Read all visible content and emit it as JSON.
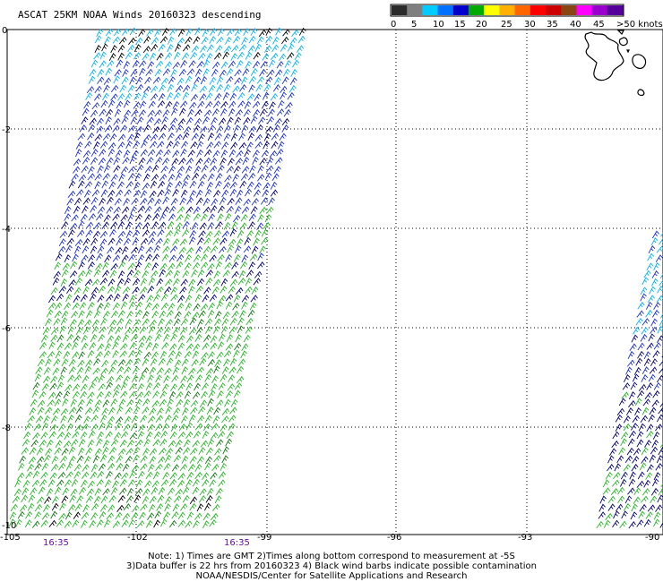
{
  "title": "ASCAT 25KM NOAA Winds 20160323 descending",
  "legend": {
    "labels": [
      "0",
      "5",
      "10",
      "15",
      "20",
      "25",
      "30",
      "35",
      "40",
      "45",
      ">50 knots"
    ],
    "colors": [
      "#2b2b2b",
      "#7f7f7f",
      "#00ccff",
      "#0070ff",
      "#0000cc",
      "#00aa00",
      "#ffff00",
      "#ffb000",
      "#ff6600",
      "#ff0000",
      "#cc0000",
      "#8b4513",
      "#ff00ff",
      "#9900cc",
      "#550099"
    ]
  },
  "axes": {
    "lat_labels": [
      "0",
      "-2",
      "-4",
      "-6",
      "-8",
      "-10"
    ],
    "lon_labels": [
      "-105",
      "-102",
      "-99",
      "-96",
      "-93",
      "-90"
    ]
  },
  "time_labels": [
    "16:35",
    "16:35"
  ],
  "notes": {
    "line1": "Note: 1) Times are GMT 2)Times along bottom correspond to measurement at -5S",
    "line2": "3)Data buffer is 22 hrs from 20160323 4) Black wind barbs indicate possible contamination",
    "line3": "NOAA/NESDIS/Center for Satellite Applications and Research"
  },
  "colors": {
    "green": "#22b922",
    "dark_green": "#117711",
    "blue": "#1a2fd6",
    "navy": "#00007a",
    "cyan": "#00b4ff",
    "black": "#000000"
  }
}
